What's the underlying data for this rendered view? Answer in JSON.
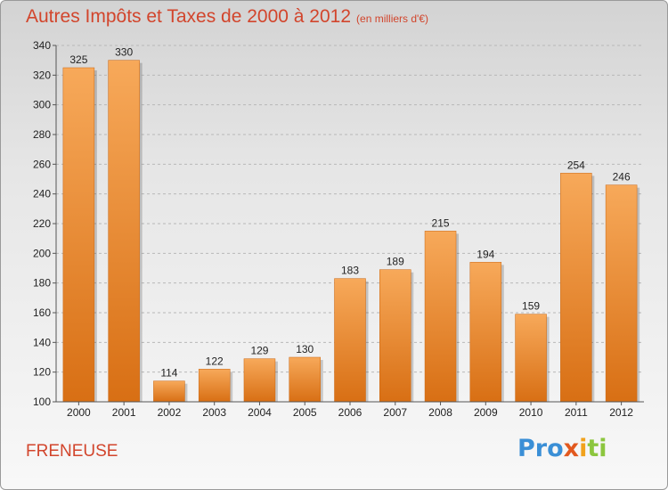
{
  "title": "Autres Impôts et Taxes de 2000 à 2012",
  "subtitle": "(en milliers d'€)",
  "town": "FRENEUSE",
  "logo": [
    "Pro",
    "x",
    "i",
    "ti"
  ],
  "colors": {
    "bar_light": "#f7a95a",
    "bar_dark": "#d86f14",
    "title": "#d2452c"
  },
  "chart_data": {
    "type": "bar",
    "title": "Autres Impôts et Taxes de 2000 à 2012",
    "subtitle": "(en milliers d'€)",
    "categories": [
      "2000",
      "2001",
      "2002",
      "2003",
      "2004",
      "2005",
      "2006",
      "2007",
      "2008",
      "2009",
      "2010",
      "2011",
      "2012"
    ],
    "values": [
      325,
      330,
      114,
      122,
      129,
      130,
      183,
      189,
      215,
      194,
      159,
      254,
      246
    ],
    "data_labels": [
      "325",
      "330",
      "114",
      "122",
      "129",
      "130",
      "183",
      "189",
      "215",
      "194",
      "159",
      "254",
      "246"
    ],
    "ylim": [
      100,
      340
    ],
    "yticks": [
      100,
      120,
      140,
      160,
      180,
      200,
      220,
      240,
      260,
      280,
      300,
      320,
      340
    ],
    "grid": "horizontal dashed",
    "xlabel": "",
    "ylabel": ""
  }
}
